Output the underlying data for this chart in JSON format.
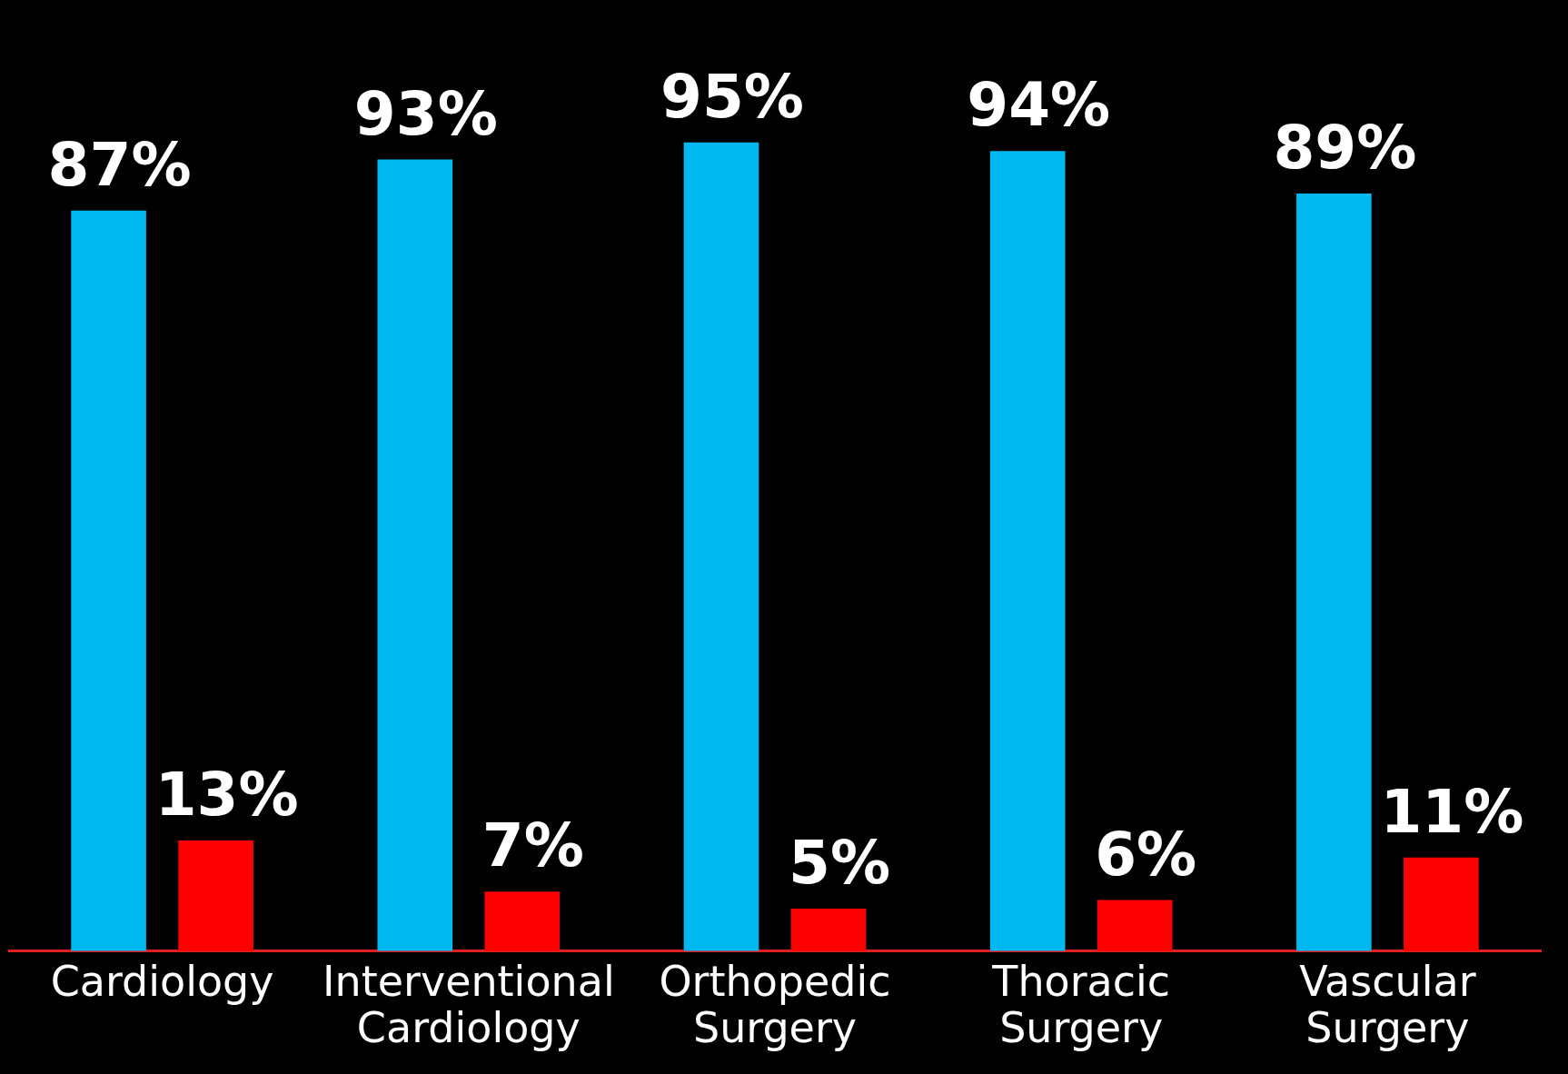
{
  "chart_data": {
    "type": "bar",
    "categories": [
      "Cardiology",
      "Interventional Cardiology",
      "Orthopedic Surgery",
      "Thoracic Surgery",
      "Vascular Surgery"
    ],
    "series": [
      {
        "color": "#00b8f0",
        "values": [
          87,
          93,
          95,
          94,
          89
        ],
        "value_labels": [
          "87%",
          "93%",
          "95%",
          "94%",
          "89%"
        ]
      },
      {
        "color": "#ff0000",
        "values": [
          13,
          7,
          5,
          6,
          11
        ],
        "value_labels": [
          "13%",
          "7%",
          "5%",
          "6%",
          "11%"
        ]
      }
    ],
    "legend": false,
    "tick_labels": "x"
  }
}
